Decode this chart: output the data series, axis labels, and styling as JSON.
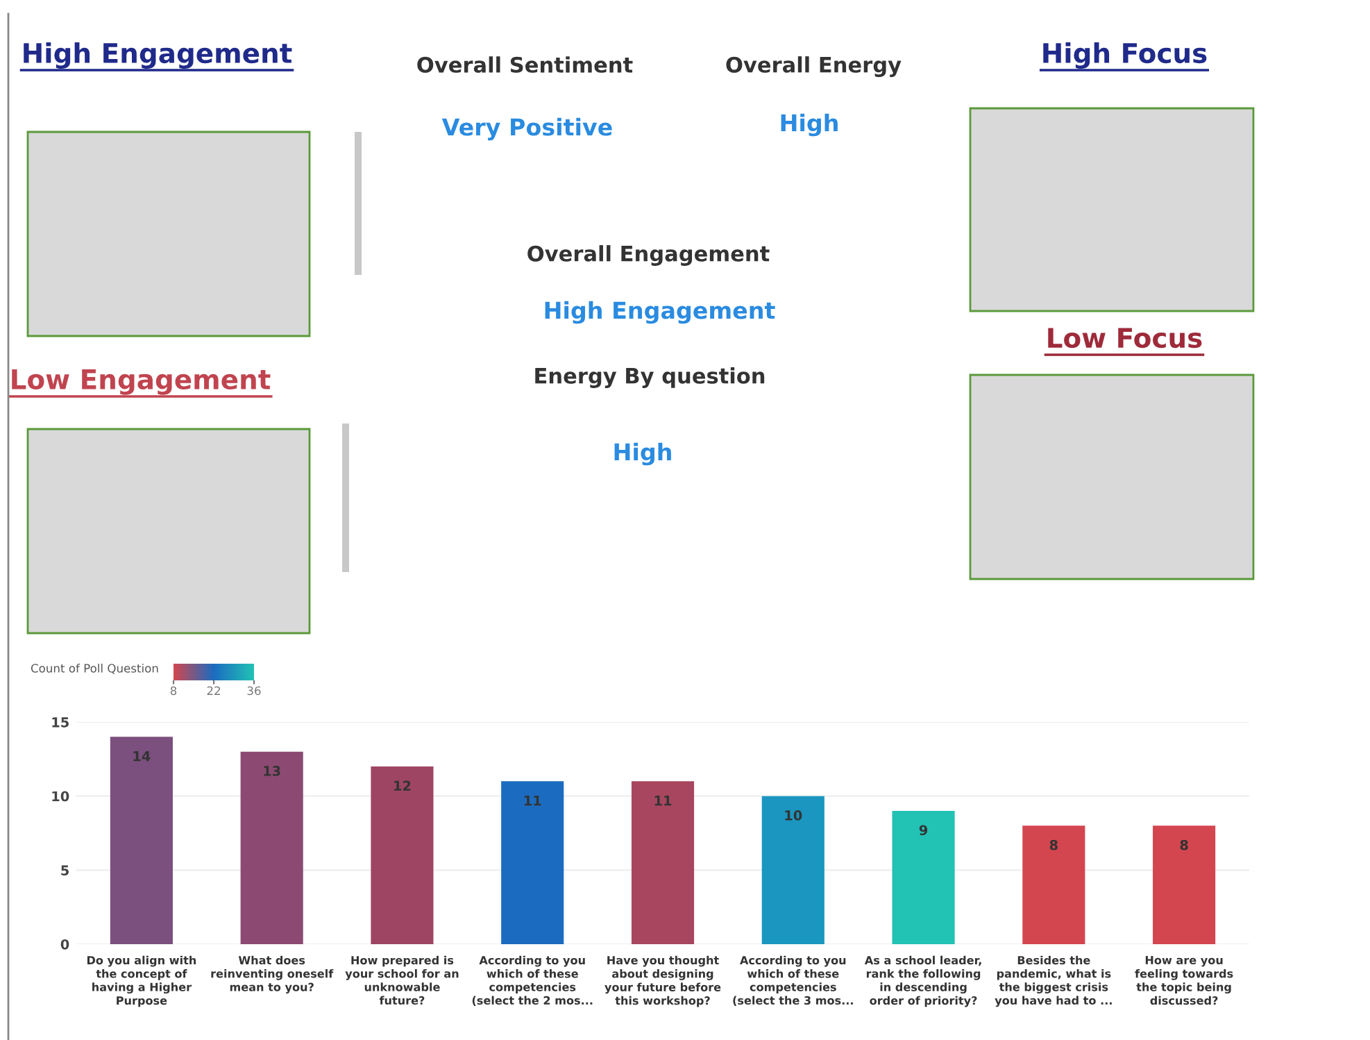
{
  "chart_data": [
    {
      "type": "other",
      "annotations": [
        "High Engagement",
        "Overall Sentiment",
        "Very Positive",
        "Overall Energy",
        "High",
        "High Focus",
        "Overall Engagement",
        "High Engagement",
        "Low Engagement",
        "Energy By question",
        "High",
        "Low Focus"
      ]
    },
    {
      "type": "bar",
      "categories": [
        "Do you align with\nthe concept of\nhaving a Higher\nPurpose",
        "What does\nreinventing oneself\nmean to you?",
        "How prepared is\nyour school for an\nunknowable\nfuture?",
        "According to you\nwhich of these\ncompetencies\n(select the 2 mos...",
        "Have you thought\nabout designing\nyour future before\nthis workshop?",
        "According to you\nwhich of these\ncompetencies\n(select the 3 mos...",
        "As a school leader,\nrank the following\nin descending\norder of priority?",
        "Besides the\npandemic, what is\nthe biggest crisis\nyou have had to ...",
        "How are you\nfeeling towards\nthe topic being\ndiscussed?"
      ],
      "values": [
        14,
        13,
        12,
        11,
        11,
        10,
        9,
        8,
        8
      ],
      "colors": [
        "#7b4f7e",
        "#8c4a72",
        "#9e4563",
        "#1b6cc0",
        "#a8465f",
        "#1a96c0",
        "#22c2b5",
        "#d4464f",
        "#d4464f"
      ],
      "ylim": [
        0,
        15
      ],
      "yticks": [
        0,
        5,
        10,
        15
      ],
      "grid": "y",
      "data_labels": true,
      "clabel": "Count of Poll Question",
      "clim": [
        8,
        36
      ],
      "cticks": [
        8,
        22,
        36
      ]
    }
  ]
}
